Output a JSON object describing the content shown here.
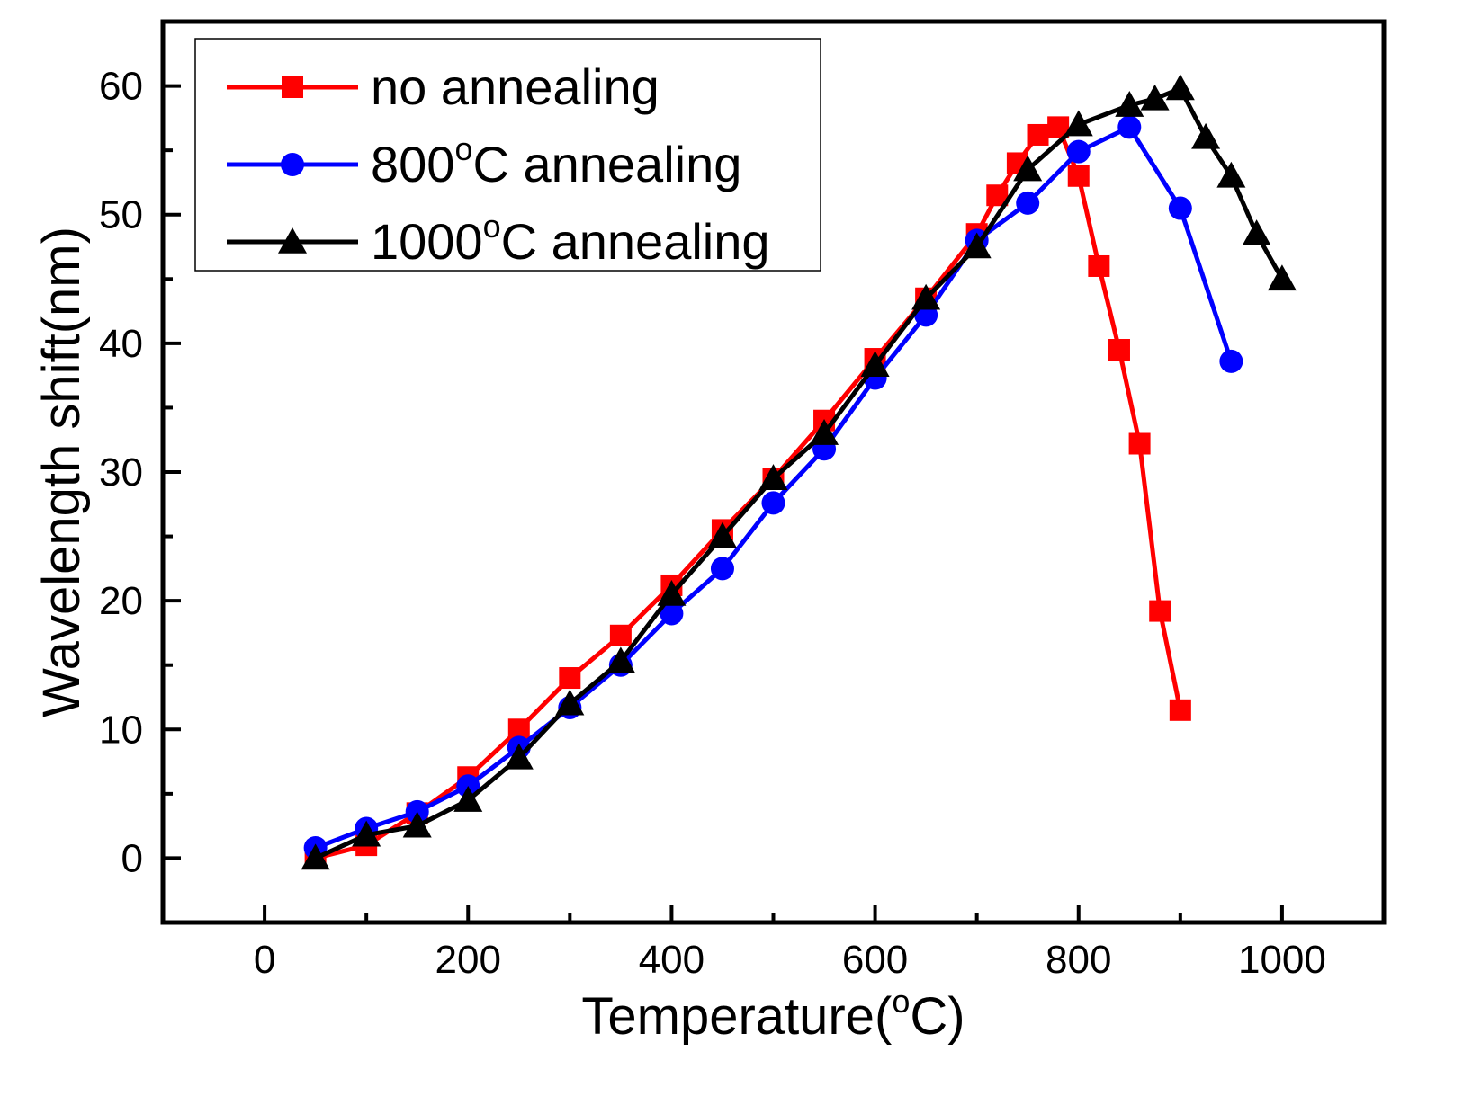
{
  "chart_data": {
    "type": "line",
    "title": "",
    "xlabel": "Temperature",
    "xlabel_unit": "C",
    "ylabel": "Wavelength shift(nm)",
    "xlim": [
      -100,
      1100
    ],
    "ylim": [
      -5,
      65
    ],
    "xticks": [
      0,
      200,
      400,
      600,
      800,
      1000
    ],
    "yticks": [
      0,
      10,
      20,
      30,
      40,
      50,
      60
    ],
    "grid": false,
    "legend_position": "top-left",
    "series": [
      {
        "name": "no annealing",
        "legend_prefix": "no annealing",
        "legend_suffix": "",
        "legend_sup": "",
        "color": "#ff0000",
        "marker": "square",
        "x": [
          50,
          100,
          150,
          200,
          250,
          300,
          350,
          400,
          450,
          500,
          550,
          600,
          650,
          700,
          720,
          740,
          760,
          780,
          800,
          820,
          840,
          860,
          880,
          900
        ],
        "y": [
          0,
          1,
          3.5,
          6.3,
          10,
          14,
          17.3,
          21.2,
          25.5,
          29.5,
          34,
          38.8,
          43.5,
          48.5,
          51.5,
          54,
          56.2,
          56.8,
          53,
          46,
          39.5,
          32.2,
          19.2,
          11.5
        ]
      },
      {
        "name": "800°C annealing",
        "legend_prefix": "800",
        "legend_sup": "o",
        "legend_suffix": "C annealing",
        "color": "#0000ff",
        "marker": "circle",
        "x": [
          50,
          100,
          150,
          200,
          250,
          300,
          350,
          400,
          450,
          500,
          550,
          600,
          650,
          700,
          750,
          800,
          850,
          900,
          950
        ],
        "y": [
          0.8,
          2.3,
          3.6,
          5.6,
          8.6,
          11.7,
          15,
          19,
          22.5,
          27.6,
          31.8,
          37.3,
          42.2,
          48,
          50.9,
          54.9,
          56.8,
          50.5,
          38.6
        ]
      },
      {
        "name": "1000°C annealing",
        "legend_prefix": "1000",
        "legend_sup": "o",
        "legend_suffix": "C annealing",
        "color": "#000000",
        "marker": "triangle",
        "x": [
          50,
          100,
          150,
          200,
          250,
          300,
          350,
          400,
          450,
          500,
          550,
          600,
          650,
          700,
          750,
          800,
          850,
          875,
          900,
          925,
          950,
          975,
          1000
        ],
        "y": [
          0,
          1.8,
          2.5,
          4.5,
          7.8,
          12,
          15.3,
          20.5,
          25,
          29.5,
          33,
          38.3,
          43.5,
          47.5,
          53.5,
          57,
          58.5,
          59,
          59.8,
          56,
          53,
          48.5,
          45
        ]
      }
    ]
  }
}
